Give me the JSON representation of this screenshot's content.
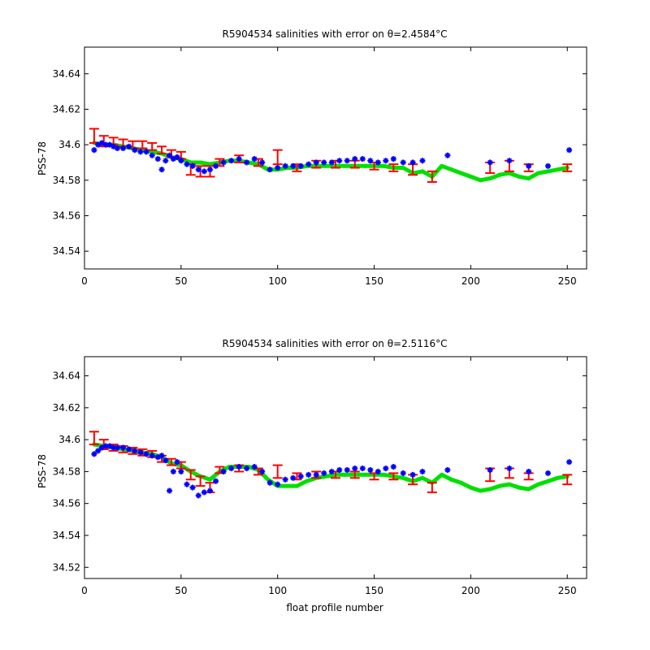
{
  "chart_data": [
    {
      "type": "scatter",
      "title": "R5904534 salinities with error on θ=2.4584°C",
      "xlabel": "",
      "ylabel": "PSS-78",
      "xlim": [
        0,
        260
      ],
      "ylim": [
        34.53,
        34.655
      ],
      "x_ticks": [
        0,
        50,
        100,
        150,
        200,
        250
      ],
      "y_ticks": [
        34.54,
        34.56,
        34.58,
        34.6,
        34.62,
        34.64
      ],
      "x_tick_labels": [
        "0",
        "50",
        "100",
        "150",
        "200",
        "250"
      ],
      "y_tick_labels": [
        "34.54",
        "34.56",
        "34.58",
        "34.6",
        "34.62",
        "34.64"
      ],
      "series": [
        {
          "role": "mapped-estimate",
          "color": "#00e000",
          "x": [
            5,
            10,
            15,
            20,
            25,
            30,
            35,
            40,
            45,
            50,
            55,
            60,
            65,
            70,
            75,
            80,
            85,
            90,
            95,
            100,
            105,
            110,
            115,
            120,
            125,
            130,
            135,
            140,
            145,
            150,
            155,
            160,
            165,
            170,
            175,
            180,
            185,
            190,
            195,
            200,
            205,
            210,
            215,
            220,
            225,
            230,
            235,
            240,
            245,
            250
          ],
          "y": [
            34.601,
            34.6,
            34.6,
            34.599,
            34.598,
            34.597,
            34.596,
            34.595,
            34.593,
            34.592,
            34.59,
            34.59,
            34.589,
            34.59,
            34.591,
            34.591,
            34.59,
            34.589,
            34.586,
            34.586,
            34.587,
            34.587,
            34.588,
            34.588,
            34.588,
            34.588,
            34.588,
            34.588,
            34.588,
            34.588,
            34.588,
            34.587,
            34.587,
            34.584,
            34.585,
            34.582,
            34.588,
            34.586,
            34.584,
            34.582,
            34.58,
            34.581,
            34.583,
            34.584,
            34.582,
            34.581,
            34.584,
            34.585,
            34.586,
            34.587
          ]
        },
        {
          "role": "mapped-error",
          "color": "#ff0000",
          "x": [
            5,
            10,
            15,
            20,
            25,
            30,
            35,
            40,
            45,
            50,
            55,
            60,
            65,
            70,
            80,
            90,
            100,
            110,
            120,
            130,
            140,
            150,
            160,
            170,
            180,
            210,
            220,
            230,
            250
          ],
          "y": [
            34.605,
            34.602,
            34.602,
            34.601,
            34.6,
            34.6,
            34.599,
            34.597,
            34.595,
            34.594,
            34.586,
            34.585,
            34.585,
            34.59,
            34.592,
            34.59,
            34.593,
            34.587,
            34.589,
            34.589,
            34.589,
            34.588,
            34.587,
            34.586,
            34.582,
            34.587,
            34.588,
            34.587,
            34.587
          ],
          "err": [
            0.004,
            0.003,
            0.002,
            0.002,
            0.002,
            0.002,
            0.002,
            0.002,
            0.002,
            0.002,
            0.003,
            0.003,
            0.003,
            0.002,
            0.002,
            0.002,
            0.004,
            0.002,
            0.002,
            0.002,
            0.002,
            0.002,
            0.002,
            0.003,
            0.003,
            0.003,
            0.003,
            0.002,
            0.002
          ]
        },
        {
          "role": "float-salinity",
          "color": "#0000ff",
          "x": [
            5,
            7,
            9,
            11,
            13,
            15,
            17,
            20,
            23,
            26,
            29,
            32,
            35,
            38,
            40,
            42,
            44,
            46,
            48,
            50,
            53,
            56,
            59,
            62,
            65,
            68,
            72,
            76,
            80,
            84,
            88,
            92,
            96,
            100,
            104,
            108,
            112,
            116,
            120,
            124,
            128,
            132,
            136,
            140,
            144,
            148,
            152,
            156,
            160,
            165,
            170,
            175,
            188,
            210,
            220,
            230,
            240,
            251
          ],
          "y": [
            34.597,
            34.6,
            34.601,
            34.6,
            34.6,
            34.599,
            34.598,
            34.598,
            34.599,
            34.597,
            34.596,
            34.596,
            34.594,
            34.592,
            34.586,
            34.591,
            34.594,
            34.592,
            34.593,
            34.591,
            34.589,
            34.588,
            34.586,
            34.585,
            34.586,
            34.588,
            34.59,
            34.591,
            34.592,
            34.59,
            34.592,
            34.59,
            34.586,
            34.587,
            34.588,
            34.588,
            34.588,
            34.589,
            34.59,
            34.59,
            34.59,
            34.591,
            34.591,
            34.592,
            34.592,
            34.591,
            34.59,
            34.591,
            34.592,
            34.59,
            34.59,
            34.591,
            34.594,
            34.59,
            34.591,
            34.588,
            34.588,
            34.597
          ]
        }
      ]
    },
    {
      "type": "scatter",
      "title": "R5904534 salinities with error on θ=2.5116°C",
      "xlabel": "float profile number",
      "ylabel": "PSS-78",
      "xlim": [
        0,
        260
      ],
      "ylim": [
        34.513,
        34.652
      ],
      "x_ticks": [
        0,
        50,
        100,
        150,
        200,
        250
      ],
      "y_ticks": [
        34.52,
        34.54,
        34.56,
        34.58,
        34.6,
        34.62,
        34.64
      ],
      "x_tick_labels": [
        "0",
        "50",
        "100",
        "150",
        "200",
        "250"
      ],
      "y_tick_labels": [
        "34.52",
        "34.54",
        "34.56",
        "34.58",
        "34.6",
        "34.62",
        "34.64"
      ],
      "series": [
        {
          "role": "mapped-estimate",
          "color": "#00e000",
          "x": [
            5,
            10,
            15,
            20,
            25,
            30,
            35,
            40,
            45,
            50,
            55,
            60,
            65,
            70,
            75,
            80,
            85,
            90,
            95,
            100,
            105,
            110,
            115,
            120,
            125,
            130,
            135,
            140,
            145,
            150,
            155,
            160,
            165,
            170,
            175,
            180,
            185,
            190,
            195,
            200,
            205,
            210,
            215,
            220,
            225,
            230,
            235,
            240,
            245,
            250
          ],
          "y": [
            34.597,
            34.596,
            34.595,
            34.594,
            34.593,
            34.592,
            34.591,
            34.589,
            34.585,
            34.584,
            34.58,
            34.577,
            34.575,
            34.58,
            34.583,
            34.583,
            34.583,
            34.581,
            34.575,
            34.571,
            34.571,
            34.571,
            34.574,
            34.576,
            34.577,
            34.578,
            34.578,
            34.578,
            34.578,
            34.578,
            34.578,
            34.577,
            34.576,
            34.574,
            34.576,
            34.573,
            34.578,
            34.575,
            34.573,
            34.57,
            34.568,
            34.569,
            34.571,
            34.572,
            34.57,
            34.569,
            34.572,
            34.574,
            34.576,
            34.577
          ]
        },
        {
          "role": "mapped-error",
          "color": "#ff0000",
          "x": [
            5,
            10,
            15,
            20,
            25,
            30,
            35,
            40,
            45,
            50,
            55,
            60,
            65,
            70,
            80,
            90,
            100,
            110,
            120,
            130,
            140,
            150,
            160,
            170,
            180,
            210,
            220,
            230,
            250
          ],
          "y": [
            34.601,
            34.597,
            34.595,
            34.594,
            34.593,
            34.592,
            34.591,
            34.588,
            34.586,
            34.584,
            34.578,
            34.574,
            34.57,
            34.581,
            34.582,
            34.58,
            34.58,
            34.577,
            34.578,
            34.578,
            34.578,
            34.577,
            34.577,
            34.575,
            34.57,
            34.578,
            34.579,
            34.577,
            34.575
          ],
          "err": [
            0.004,
            0.003,
            0.002,
            0.002,
            0.002,
            0.002,
            0.002,
            0.002,
            0.002,
            0.002,
            0.003,
            0.003,
            0.003,
            0.002,
            0.002,
            0.002,
            0.004,
            0.002,
            0.002,
            0.002,
            0.002,
            0.002,
            0.002,
            0.003,
            0.003,
            0.004,
            0.003,
            0.002,
            0.003
          ]
        },
        {
          "role": "float-salinity",
          "color": "#0000ff",
          "x": [
            5,
            7,
            9,
            11,
            13,
            15,
            17,
            20,
            23,
            26,
            29,
            32,
            35,
            38,
            40,
            42,
            44,
            46,
            48,
            50,
            53,
            56,
            59,
            62,
            65,
            68,
            72,
            76,
            80,
            84,
            88,
            92,
            96,
            100,
            104,
            108,
            112,
            116,
            120,
            124,
            128,
            132,
            136,
            140,
            144,
            148,
            152,
            156,
            160,
            165,
            170,
            175,
            188,
            210,
            220,
            230,
            240,
            251
          ],
          "y": [
            34.591,
            34.593,
            34.595,
            34.596,
            34.596,
            34.595,
            34.595,
            34.595,
            34.594,
            34.593,
            34.592,
            34.591,
            34.59,
            34.589,
            34.59,
            34.587,
            34.568,
            34.58,
            34.586,
            34.58,
            34.572,
            34.57,
            34.565,
            34.567,
            34.568,
            34.574,
            34.58,
            34.582,
            34.583,
            34.582,
            34.583,
            34.58,
            34.573,
            34.572,
            34.575,
            34.576,
            34.577,
            34.578,
            34.578,
            34.579,
            34.58,
            34.581,
            34.581,
            34.582,
            34.582,
            34.581,
            34.58,
            34.582,
            34.583,
            34.579,
            34.578,
            34.58,
            34.581,
            34.581,
            34.582,
            34.58,
            34.579,
            34.586
          ]
        }
      ]
    }
  ]
}
